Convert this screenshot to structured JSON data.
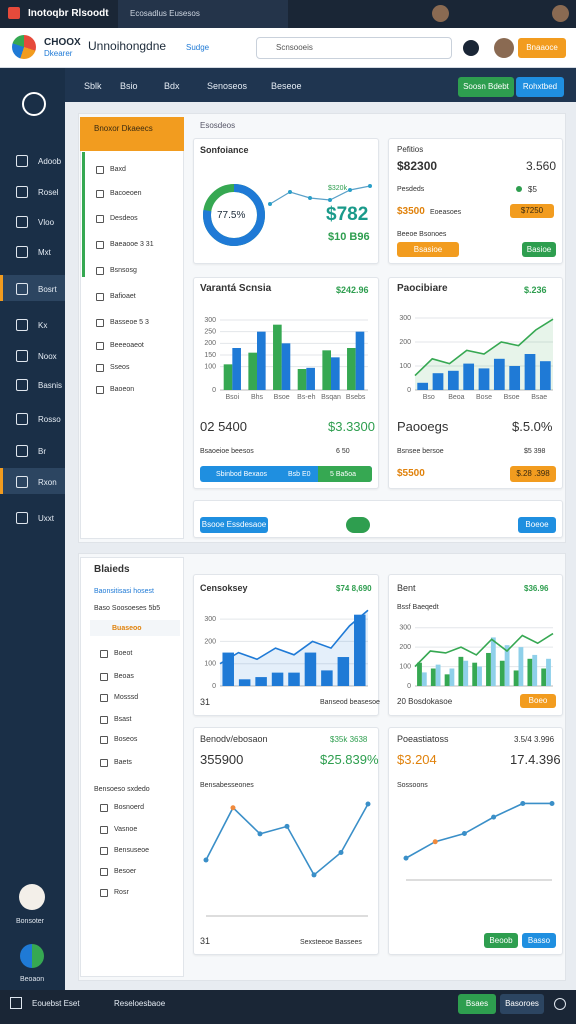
{
  "titlebar": {
    "app": "Inotoqbr Rlsoodt",
    "tab": "Ecosadlus Eusesos"
  },
  "header": {
    "brand": "CHOOX",
    "brand_sub": "Dkearer",
    "title": "Unnoihongdne",
    "badge": "Sudge",
    "search": "Scnsooeis",
    "button": "Bnaaoce"
  },
  "sidebar": {
    "items": [
      "Adoob",
      "Rosel",
      "Vloo",
      "Mxt",
      "Bosrt",
      "Kx",
      "Noox",
      "Basnis",
      "Rosso",
      "Br",
      "Rxon",
      "Uxxt"
    ],
    "user": "Bonsoter",
    "footer": "Beoaon"
  },
  "nav": {
    "tabs": [
      "Sblk",
      "Bsio",
      "Bdx",
      "Senoseos",
      "Beseoe"
    ],
    "buttons": [
      "Soosn Bdebt",
      "Rohxtbed"
    ]
  },
  "panel1": {
    "filter_title": "Bnoxor Dkaeecs",
    "section": "Esosdeos",
    "filters": [
      "Baxd",
      "Bacoeoen",
      "Desdeos",
      "Baeaooe 3 31",
      "Bsnsosg",
      "Bafioaet",
      "Basseoe 5 3",
      "Beeeoaeot",
      "Sseos",
      "Baoeon"
    ],
    "score": {
      "title": "Sonfoiance",
      "donut": 77.5,
      "donut_label": "77.5%",
      "line": {
        "ylim": [
          0,
          100
        ],
        "values": [
          40,
          70,
          55,
          50,
          75,
          85
        ]
      },
      "value": "$782",
      "sub": "$10 B96",
      "tag": "$320k"
    },
    "profit": {
      "title": "Pefitios",
      "value": "$82300",
      "value2": "3.560",
      "label": "Pesdeds",
      "label2": "$5",
      "amount": "$3500",
      "amount_label": "Eoeasoes",
      "badge": "$7250",
      "note": "Beeoe Bsonoes",
      "button": "Bsasioe",
      "button2": "Basioe"
    },
    "variant": {
      "title": "Varantá Scnsia",
      "value": "$242.96",
      "chart": {
        "ylim": [
          0,
          300
        ],
        "yticks": [
          0,
          100,
          150,
          200,
          250,
          300
        ],
        "xlabels": [
          "Bsoi",
          "Bhs",
          "Bsoe",
          "Bs-eh",
          "Bsqan",
          "Bsebs"
        ],
        "series": [
          {
            "kind": "bar",
            "color": "#36a852",
            "values": [
              110,
              160,
              280,
              90,
              170,
              180
            ]
          },
          {
            "kind": "bar",
            "color": "#1f7ad6",
            "values": [
              180,
              250,
              200,
              95,
              140,
              250
            ]
          }
        ]
      },
      "stat": "02 5400",
      "stat2": "$3.3300",
      "note": "Bsaoeioe beesos",
      "note2": "6 50",
      "bar": [
        "Sbinbod Bexaos",
        "Bsb E0",
        "5 Ba5oa"
      ]
    },
    "prob": {
      "title": "Paocibiare",
      "value": "$.236",
      "chart": {
        "ylim": [
          0,
          300
        ],
        "yticks": [
          0,
          100,
          200,
          300
        ],
        "xlabels": [
          "Bso",
          "Beoa",
          "Bose",
          "Bsoe",
          "Bsae"
        ],
        "series": [
          {
            "kind": "area",
            "color": "#36a852",
            "values": [
              60,
              130,
              110,
              165,
              150,
              200,
              185,
              250,
              295
            ]
          },
          {
            "kind": "bar",
            "color": "#1f7ad6",
            "values": [
              30,
              70,
              80,
              110,
              90,
              130,
              100,
              150,
              120
            ]
          }
        ]
      },
      "stat": "Paooegs",
      "stat2": "$.5.0%",
      "note": "Bsnsee bersoe",
      "note2": "$5 398",
      "amount": "$5500",
      "badge": "$.28 .398"
    },
    "footer": {
      "button": "Bsooe Essdesaoe",
      "button2": "Boeoe"
    }
  },
  "panel2": {
    "filter_title": "Blaieds",
    "link": "Baonsitisasi hosest",
    "sub": "Baso Soosoeses 5b5",
    "active": "Buaseoo",
    "filters": [
      "Boeot",
      "Beoas",
      "Mosssd",
      "Bsast",
      "Boseos",
      "Baets"
    ],
    "section": "Bensoeso sxdedo",
    "filters2": [
      "Bosnoerd",
      "Vasnoe",
      "Bensuseoe",
      "Besoer",
      "Rosr"
    ],
    "cens": {
      "title": "Censoksey",
      "value": "$74 8,690",
      "chart": {
        "ylim": [
          0,
          350
        ],
        "yticks": [
          0,
          100,
          200,
          300
        ],
        "series": [
          {
            "kind": "area",
            "color": "#1f7ad6",
            "values": [
              100,
              150,
              120,
              170,
              140,
              200,
              170,
              270,
              340
            ]
          },
          {
            "kind": "bar",
            "color": "#1f7ad6",
            "values": [
              150,
              30,
              40,
              60,
              60,
              150,
              70,
              130,
              320
            ]
          }
        ]
      },
      "foot": "31",
      "foot2": "Banseod beasesoe"
    },
    "bent": {
      "title": "Bent",
      "value": "$36.96",
      "sub": "Bssf Baeqedt",
      "chart": {
        "ylim": [
          0,
          350
        ],
        "yticks": [
          0,
          100,
          200,
          300
        ],
        "series": [
          {
            "kind": "bar",
            "color": "#36a852",
            "values": [
              120,
              90,
              60,
              150,
              120,
              170,
              130,
              80,
              140,
              90
            ]
          },
          {
            "kind": "bar",
            "color": "#8fd0ea",
            "values": [
              70,
              110,
              90,
              130,
              100,
              250,
              210,
              200,
              160,
              140
            ]
          },
          {
            "kind": "line",
            "color": "#36a852",
            "values": [
              100,
              180,
              170,
              200,
              160,
              240,
              180,
              260,
              220,
              270
            ]
          }
        ]
      },
      "foot": "20 Bosdokasoe",
      "button": "Boeo"
    },
    "deno": {
      "title": "Benodv/ebosaon",
      "value": "$35k 3638",
      "stat": "355900",
      "stat2": "$25.839%",
      "note": "Bensabesseones",
      "chart": {
        "ylim": [
          0,
          300
        ],
        "series": [
          {
            "kind": "line",
            "color": "#3a8fc8",
            "dots": true,
            "values": [
              150,
              290,
              220,
              240,
              110,
              170,
              300
            ]
          }
        ]
      },
      "foot": "31",
      "foot2": "Sexsteeoe Bassees"
    },
    "poe": {
      "title": "Poeastiatoss",
      "value": "3.5/4 3.996",
      "stat": "$3.204",
      "stat2": "17.4.396",
      "note": "Sossoons",
      "chart": {
        "ylim": [
          0,
          300
        ],
        "series": [
          {
            "kind": "line",
            "color": "#3a8fc8",
            "dots": true,
            "values": [
              80,
              140,
              170,
              230,
              280,
              280
            ]
          }
        ]
      },
      "button": "Beoob",
      "button2": "Basso"
    }
  },
  "bottombar": {
    "left": "Eouebst Eset",
    "mid": "Reseloesbaoe",
    "button": "Bsaes",
    "button2": "Basoroes"
  }
}
